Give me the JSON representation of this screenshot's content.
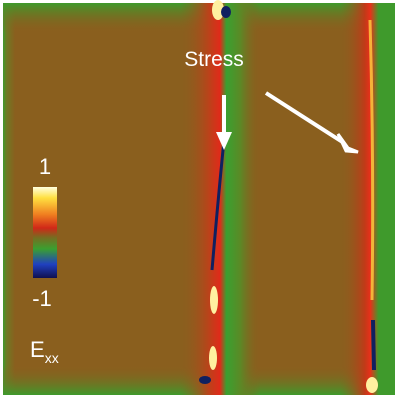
{
  "annotation": "Stress",
  "colorbar": {
    "max_label": "1",
    "min_label": "-1",
    "label": "E",
    "label_subscript": "xx"
  }
}
